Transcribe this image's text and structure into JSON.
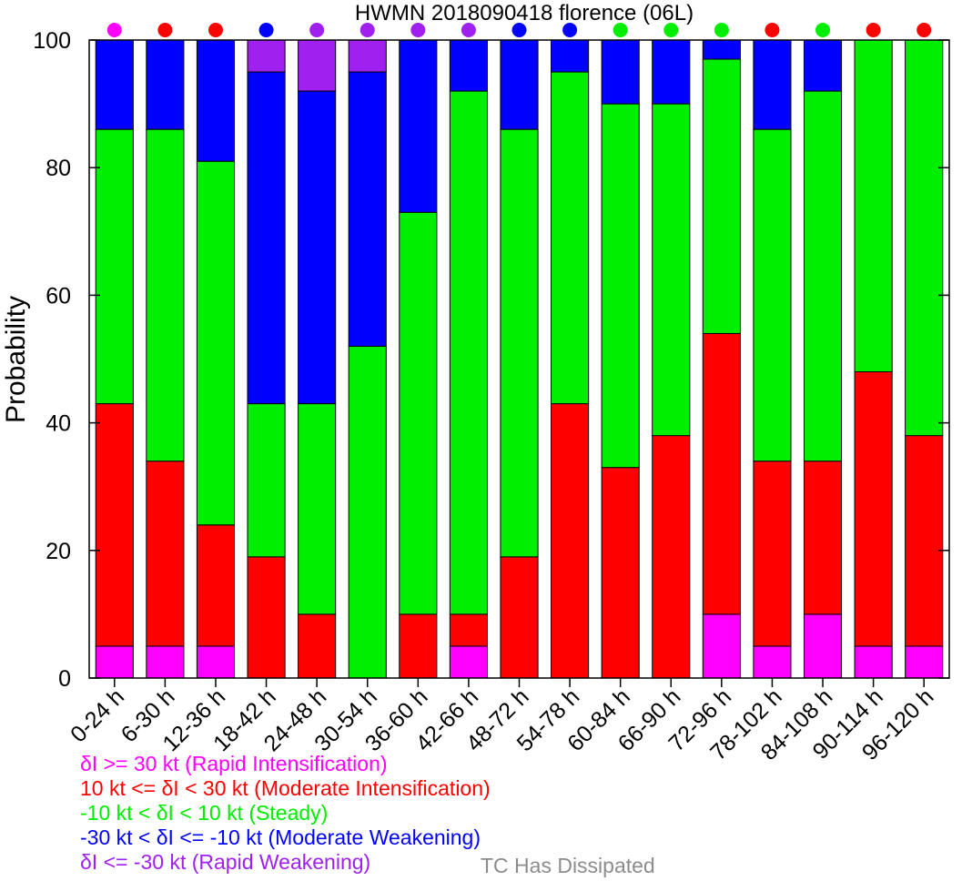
{
  "chart_data": {
    "type": "bar",
    "stacked": true,
    "title": "HWMN 2018090418 florence (06L)",
    "xlabel": "",
    "ylabel": "Probability",
    "ylim": [
      0,
      100
    ],
    "yticks": [
      "0",
      "20",
      "40",
      "60",
      "80",
      "100"
    ],
    "grid": false,
    "categories": [
      "0-24 h",
      "6-30 h",
      "12-36 h",
      "18-42 h",
      "24-48 h",
      "30-54 h",
      "36-60 h",
      "42-66 h",
      "48-72 h",
      "54-78 h",
      "60-84 h",
      "66-90 h",
      "72-96 h",
      "78-102 h",
      "84-108 h",
      "90-114 h",
      "96-120 h"
    ],
    "series": [
      {
        "key": "ri",
        "color": "#ff00ff",
        "values": [
          5,
          5,
          5,
          0,
          0,
          0,
          0,
          5,
          0,
          0,
          0,
          0,
          10,
          5,
          10,
          5,
          5
        ]
      },
      {
        "key": "mi",
        "color": "#ff0000",
        "values": [
          38,
          29,
          19,
          19,
          10,
          0,
          10,
          5,
          19,
          43,
          33,
          38,
          44,
          29,
          24,
          43,
          33
        ]
      },
      {
        "key": "st",
        "color": "#00ee00",
        "values": [
          43,
          52,
          57,
          24,
          33,
          52,
          63,
          82,
          67,
          52,
          57,
          52,
          43,
          52,
          58,
          52,
          62
        ]
      },
      {
        "key": "mw",
        "color": "#0000ff",
        "values": [
          14,
          14,
          19,
          52,
          49,
          43,
          27,
          8,
          14,
          5,
          10,
          10,
          3,
          14,
          8,
          0,
          0
        ]
      },
      {
        "key": "rw",
        "color": "#a020f0",
        "values": [
          0,
          0,
          0,
          5,
          8,
          5,
          0,
          0,
          0,
          0,
          0,
          0,
          0,
          0,
          0,
          0,
          0
        ]
      }
    ],
    "top_markers": [
      "#ff00ff",
      "#ff0000",
      "#ff0000",
      "#0000ff",
      "#a020f0",
      "#a020f0",
      "#a020f0",
      "#a020f0",
      "#0000ff",
      "#0000ff",
      "#00ee00",
      "#00ee00",
      "#00ee00",
      "#ff0000",
      "#00ee00",
      "#ff0000",
      "#ff0000"
    ],
    "legend": [
      {
        "label": "δI >= 30 kt (Rapid Intensification)",
        "color": "#ff00ff"
      },
      {
        "label": "10 kt <= δI < 30 kt (Moderate Intensification)",
        "color": "#ff0000"
      },
      {
        "label": "-10 kt < δI < 10 kt (Steady)",
        "color": "#00ee00"
      },
      {
        "label": "-30 kt < δI <= -10 kt (Moderate Weakening)",
        "color": "#0000ff"
      },
      {
        "label": "δI <= -30 kt (Rapid Weakening)",
        "color": "#a020f0"
      }
    ],
    "dissipated_label": {
      "label": "TC Has Dissipated",
      "color": "#8c8c8c"
    }
  }
}
